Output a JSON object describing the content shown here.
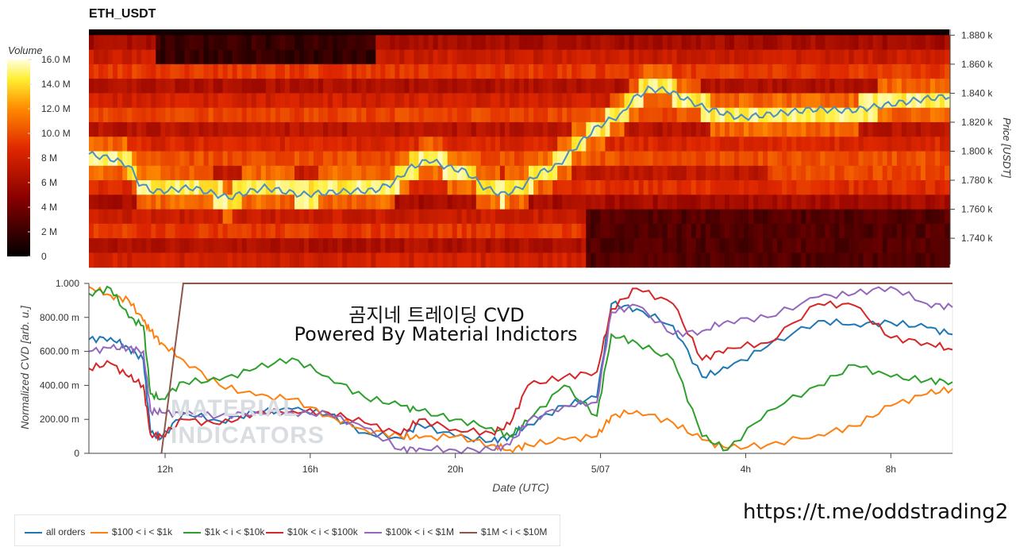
{
  "title": "ETH_USDT",
  "overlay_text": [
    "곰지네 트레이딩 CVD",
    "Powered By Material Indictors"
  ],
  "watermark": [
    "MATERIAL",
    "INDICATORS"
  ],
  "url": "https://t.me/oddstrading2",
  "colors": {
    "heat_low": "#000000",
    "heat_mid": "#d91a00",
    "heat_high": "#ffff60",
    "price_line": "#4a8ec6"
  },
  "chart_data": [
    {
      "type": "heatmap",
      "title": "ETH_USDT",
      "colorbar_label": "Volume",
      "colorbar_ticks": [
        "16.0 M",
        "14.0 M",
        "12.0 M",
        "10.0 M",
        "8 M",
        "6 M",
        "4 M",
        "2 M",
        "0"
      ],
      "colorbar_values": [
        16,
        14,
        12,
        10,
        8,
        6,
        4,
        2,
        0
      ],
      "color_range": [
        0,
        16
      ],
      "ylabel": "Price [USDT]",
      "ytick_labels": [
        "1.880 k",
        "1.860 k",
        "1.840 k",
        "1.820 k",
        "1.800 k",
        "1.780 k",
        "1.760 k",
        "1.740 k"
      ],
      "ytick_values": [
        1880,
        1860,
        1840,
        1820,
        1800,
        1780,
        1760,
        1740
      ],
      "ylim": [
        1722,
        1884
      ],
      "x_range_hours": [
        -1.8,
        21.7
      ],
      "price_bands": [
        1880,
        1870,
        1860,
        1850,
        1840,
        1830,
        1820,
        1810,
        1800,
        1790,
        1780,
        1770,
        1760,
        1750,
        1740,
        1730
      ],
      "price_series": {
        "times": [
          -1.8,
          -1.2,
          -0.7,
          -0.4,
          0,
          1,
          2,
          3,
          4,
          5,
          6,
          6.5,
          7,
          7.5,
          8,
          8.5,
          9,
          9.5,
          10,
          10.5,
          11,
          11.5,
          12,
          12.3,
          12.8,
          13,
          13.5,
          14,
          15,
          16,
          17,
          18,
          19,
          20,
          21,
          21.7
        ],
        "values": [
          1798,
          1795,
          1790,
          1777,
          1772,
          1775,
          1768,
          1775,
          1770,
          1772,
          1773,
          1778,
          1789,
          1794,
          1789,
          1786,
          1775,
          1770,
          1775,
          1785,
          1790,
          1803,
          1815,
          1820,
          1826,
          1835,
          1843,
          1842,
          1830,
          1823,
          1826,
          1829,
          1828,
          1832,
          1836,
          1838
        ]
      }
    },
    {
      "type": "line",
      "title": "",
      "xlabel": "Date (UTC)",
      "ylabel": "Normalized CVD [arb. u.]",
      "ylim": [
        0,
        1.0
      ],
      "ytick_labels": [
        "1.000",
        "800.00 m",
        "600.00 m",
        "400.00 m",
        "200.00 m",
        "0"
      ],
      "ytick_values": [
        1.0,
        0.8,
        0.6,
        0.4,
        0.2,
        0
      ],
      "xtick_labels": [
        "12h",
        "16h",
        "20h",
        "5/07",
        "4h",
        "8h"
      ],
      "xtick_hours": [
        0,
        4,
        8,
        12,
        16,
        20
      ],
      "x_range_hours": [
        -2.1,
        21.7
      ],
      "times": [
        -2.1,
        -1.5,
        -1.0,
        -0.6,
        -0.4,
        -0.1,
        0.5,
        1.5,
        2.5,
        3.5,
        4.5,
        5.5,
        6.5,
        7.0,
        8.0,
        9.0,
        9.5,
        10.0,
        11.0,
        11.9,
        12.3,
        13.0,
        14.0,
        14.8,
        15.5,
        16.6,
        18.0,
        19.0,
        20.0,
        21.0,
        21.7
      ],
      "series": [
        {
          "name": "all orders",
          "color": "#1f77b4",
          "values": [
            0.67,
            0.68,
            0.62,
            0.55,
            0.12,
            0.09,
            0.24,
            0.19,
            0.24,
            0.26,
            0.23,
            0.12,
            0.09,
            0.17,
            0.1,
            0.07,
            0.1,
            0.17,
            0.28,
            0.33,
            0.88,
            0.85,
            0.75,
            0.45,
            0.5,
            0.63,
            0.78,
            0.76,
            0.77,
            0.74,
            0.7
          ]
        },
        {
          "name": "$100 < i < $1k",
          "color": "#ff7f0e",
          "values": [
            0.98,
            0.93,
            0.9,
            0.78,
            0.72,
            0.65,
            0.55,
            0.4,
            0.34,
            0.32,
            0.22,
            0.14,
            0.1,
            0.09,
            0.1,
            0.05,
            0.02,
            0.05,
            0.08,
            0.1,
            0.22,
            0.25,
            0.18,
            0.08,
            0.03,
            0.05,
            0.11,
            0.16,
            0.28,
            0.35,
            0.38
          ]
        },
        {
          "name": "$1k < i < $10k",
          "color": "#2ca02c",
          "values": [
            0.94,
            0.97,
            0.8,
            0.75,
            0.35,
            0.32,
            0.42,
            0.43,
            0.5,
            0.56,
            0.45,
            0.33,
            0.28,
            0.25,
            0.2,
            0.15,
            0.1,
            0.19,
            0.4,
            0.22,
            0.7,
            0.65,
            0.55,
            0.1,
            0.02,
            0.25,
            0.4,
            0.52,
            0.45,
            0.43,
            0.42
          ]
        },
        {
          "name": "$10k < i < $100k",
          "color": "#d62728",
          "values": [
            0.5,
            0.53,
            0.45,
            0.4,
            0.11,
            0.1,
            0.2,
            0.17,
            0.24,
            0.25,
            0.24,
            0.18,
            0.11,
            0.2,
            0.14,
            0.12,
            0.17,
            0.4,
            0.45,
            0.48,
            0.85,
            0.97,
            0.88,
            0.55,
            0.62,
            0.65,
            0.88,
            0.87,
            0.68,
            0.65,
            0.61
          ]
        },
        {
          "name": "$100k < i < $1M",
          "color": "#9467bd",
          "values": [
            0.6,
            0.62,
            0.62,
            0.6,
            0.25,
            0.24,
            0.23,
            0.22,
            0.24,
            0.24,
            0.23,
            0.15,
            0.02,
            0.03,
            0.02,
            0.02,
            0.05,
            0.19,
            0.28,
            0.3,
            0.83,
            0.87,
            0.7,
            0.72,
            0.78,
            0.8,
            0.92,
            0.94,
            0.98,
            0.88,
            0.86
          ]
        },
        {
          "name": "$1M < i < $10M",
          "color": "#8c564b",
          "values": [
            null,
            null,
            null,
            null,
            null,
            0.0,
            1.0,
            1.0,
            1.0,
            1.0,
            1.0,
            1.0,
            1.0,
            1.0,
            1.0,
            1.0,
            1.0,
            1.0,
            1.0,
            1.0,
            1.0,
            1.0,
            1.0,
            1.0,
            1.0,
            1.0,
            1.0,
            1.0,
            1.0,
            1.0,
            1.0
          ]
        }
      ]
    }
  ]
}
